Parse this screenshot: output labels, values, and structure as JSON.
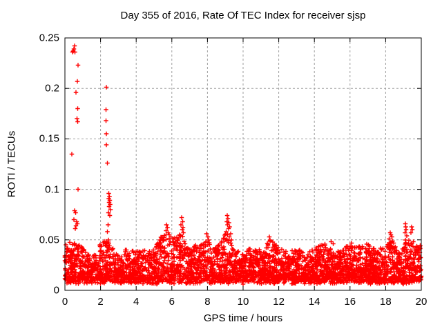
{
  "window": {
    "background": "#ffffff"
  },
  "chart_data": {
    "type": "scatter",
    "title": "Day 355 of 2016, Rate Of TEC Index for receiver sjsp",
    "xlabel": "GPS time / hours",
    "ylabel": "ROTI / TECUs",
    "xlim": [
      0,
      20
    ],
    "ylim": [
      0,
      0.25
    ],
    "x_ticks": [
      0,
      2,
      4,
      6,
      8,
      10,
      12,
      14,
      16,
      18,
      20
    ],
    "x_tick_labels": [
      "0",
      "2",
      "4",
      "6",
      "8",
      "10",
      "12",
      "14",
      "16",
      "18",
      "20"
    ],
    "y_ticks": [
      0,
      0.05,
      0.1,
      0.15,
      0.2,
      0.25
    ],
    "y_tick_labels": [
      "0",
      "0.05",
      "0.1",
      "0.15",
      "0.2",
      "0.25"
    ],
    "grid": "dashed",
    "grid_color": "#9e9e9e",
    "frame_color": "#000000",
    "legend": "none",
    "marker": {
      "shape": "plus",
      "color": "#ff0000",
      "size": 6.5
    },
    "series": [
      {
        "name": "ROTI",
        "spike_points": [
          [
            0.54,
            0.242
          ],
          [
            0.5,
            0.239
          ],
          [
            0.46,
            0.237
          ],
          [
            0.42,
            0.236
          ],
          [
            0.57,
            0.236
          ],
          [
            0.74,
            0.223
          ],
          [
            0.7,
            0.207
          ],
          [
            0.62,
            0.196
          ],
          [
            0.72,
            0.18
          ],
          [
            0.68,
            0.17
          ],
          [
            0.71,
            0.167
          ],
          [
            0.39,
            0.135
          ],
          [
            0.74,
            0.1
          ],
          [
            0.55,
            0.079
          ],
          [
            0.6,
            0.077
          ],
          [
            0.5,
            0.07
          ],
          [
            0.65,
            0.068
          ],
          [
            0.7,
            0.066
          ],
          [
            0.62,
            0.064
          ],
          [
            0.58,
            0.061
          ],
          [
            2.33,
            0.201
          ],
          [
            2.3,
            0.179
          ],
          [
            2.31,
            0.168
          ],
          [
            2.33,
            0.155
          ],
          [
            2.33,
            0.144
          ],
          [
            2.39,
            0.126
          ],
          [
            2.47,
            0.096
          ],
          [
            2.5,
            0.093
          ],
          [
            2.46,
            0.091
          ],
          [
            2.52,
            0.089
          ],
          [
            2.48,
            0.087
          ],
          [
            2.53,
            0.085
          ],
          [
            2.49,
            0.083
          ],
          [
            2.55,
            0.08
          ],
          [
            2.44,
            0.077
          ],
          [
            2.51,
            0.074
          ],
          [
            2.42,
            0.065
          ],
          [
            2.38,
            0.058
          ],
          [
            5.7,
            0.065
          ],
          [
            5.75,
            0.062
          ],
          [
            5.68,
            0.059
          ],
          [
            5.8,
            0.057
          ],
          [
            5.85,
            0.055
          ],
          [
            5.95,
            0.053
          ],
          [
            6.05,
            0.051
          ],
          [
            6.55,
            0.072
          ],
          [
            6.6,
            0.068
          ],
          [
            6.52,
            0.065
          ],
          [
            6.63,
            0.062
          ],
          [
            6.58,
            0.06
          ],
          [
            6.65,
            0.057
          ],
          [
            6.5,
            0.054
          ],
          [
            7.95,
            0.056
          ],
          [
            8.02,
            0.053
          ],
          [
            8.06,
            0.05
          ],
          [
            7.9,
            0.048
          ],
          [
            9.1,
            0.074
          ],
          [
            9.15,
            0.071
          ],
          [
            9.08,
            0.068
          ],
          [
            9.2,
            0.067
          ],
          [
            9.12,
            0.065
          ],
          [
            9.25,
            0.063
          ],
          [
            9.18,
            0.061
          ],
          [
            9.05,
            0.058
          ],
          [
            9.3,
            0.056
          ],
          [
            9.22,
            0.053
          ],
          [
            9.35,
            0.05
          ],
          [
            11.48,
            0.053
          ],
          [
            11.52,
            0.05
          ],
          [
            14.95,
            0.048
          ],
          [
            15.05,
            0.046
          ],
          [
            18.25,
            0.057
          ],
          [
            18.3,
            0.055
          ],
          [
            18.35,
            0.053
          ],
          [
            18.2,
            0.051
          ],
          [
            18.4,
            0.049
          ],
          [
            18.28,
            0.047
          ],
          [
            19.1,
            0.066
          ],
          [
            19.12,
            0.063
          ],
          [
            19.15,
            0.06
          ],
          [
            19.08,
            0.057
          ],
          [
            19.18,
            0.054
          ],
          [
            19.11,
            0.05
          ],
          [
            19.14,
            0.046
          ],
          [
            19.09,
            0.042
          ],
          [
            19.16,
            0.038
          ],
          [
            19.12,
            0.034
          ],
          [
            19.1,
            0.03
          ],
          [
            19.45,
            0.063
          ],
          [
            19.5,
            0.06
          ],
          [
            19.42,
            0.057
          ]
        ],
        "baseline_band": {
          "description": "dense noise band of ROTI values; envelope = upper edge of band vs GPS hour",
          "envelope": [
            [
              0.0,
              0.046
            ],
            [
              0.5,
              0.05
            ],
            [
              1.0,
              0.042
            ],
            [
              1.5,
              0.032
            ],
            [
              2.0,
              0.048
            ],
            [
              2.5,
              0.052
            ],
            [
              3.0,
              0.034
            ],
            [
              3.5,
              0.043
            ],
            [
              4.0,
              0.042
            ],
            [
              4.5,
              0.04
            ],
            [
              5.0,
              0.04
            ],
            [
              5.5,
              0.058
            ],
            [
              6.0,
              0.05
            ],
            [
              6.5,
              0.06
            ],
            [
              7.0,
              0.04
            ],
            [
              7.5,
              0.048
            ],
            [
              8.0,
              0.05
            ],
            [
              8.5,
              0.042
            ],
            [
              9.0,
              0.06
            ],
            [
              9.2,
              0.062
            ],
            [
              9.5,
              0.042
            ],
            [
              10.0,
              0.036
            ],
            [
              10.5,
              0.044
            ],
            [
              11.0,
              0.04
            ],
            [
              11.5,
              0.05
            ],
            [
              12.0,
              0.044
            ],
            [
              12.5,
              0.038
            ],
            [
              13.0,
              0.042
            ],
            [
              13.5,
              0.036
            ],
            [
              14.0,
              0.042
            ],
            [
              14.5,
              0.048
            ],
            [
              15.0,
              0.042
            ],
            [
              15.5,
              0.038
            ],
            [
              16.0,
              0.048
            ],
            [
              16.5,
              0.044
            ],
            [
              17.0,
              0.046
            ],
            [
              17.5,
              0.04
            ],
            [
              18.0,
              0.044
            ],
            [
              18.3,
              0.052
            ],
            [
              18.7,
              0.038
            ],
            [
              19.1,
              0.05
            ],
            [
              19.5,
              0.05
            ],
            [
              20.0,
              0.044
            ]
          ],
          "floor": 0.007,
          "n_points": 3600,
          "seed": 1355,
          "power": 1.7
        }
      }
    ]
  }
}
